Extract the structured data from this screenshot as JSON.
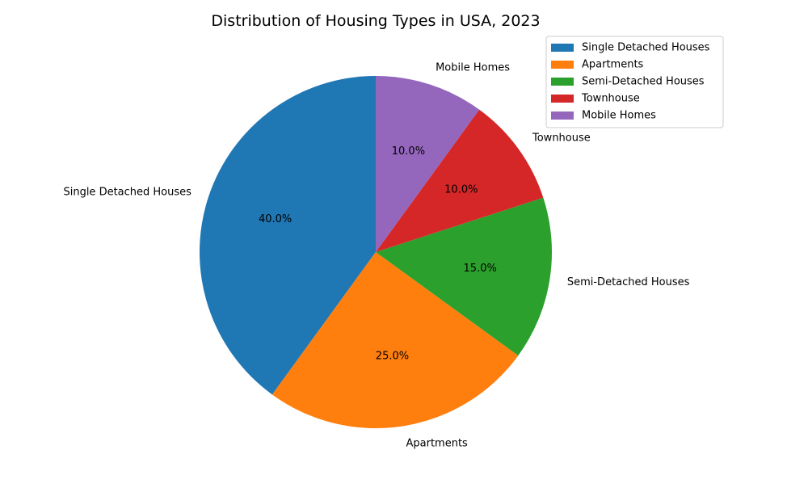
{
  "chart_data": {
    "type": "pie",
    "title": "Distribution of Housing Types in USA, 2023",
    "categories": [
      "Single Detached Houses",
      "Apartments",
      "Semi-Detached Houses",
      "Townhouse",
      "Mobile Homes"
    ],
    "values": [
      40.0,
      25.0,
      15.0,
      10.0,
      10.0
    ],
    "pct_labels": [
      "40.0%",
      "25.0%",
      "15.0%",
      "10.0%",
      "10.0%"
    ],
    "colors": [
      "#1f77b4",
      "#ff7f0e",
      "#2ca02c",
      "#d62728",
      "#9467bd"
    ],
    "start_angle_deg": 90,
    "direction": "counterclockwise",
    "legend": {
      "placement": "top-right",
      "entries": [
        "Single Detached Houses",
        "Apartments",
        "Semi-Detached Houses",
        "Townhouse",
        "Mobile Homes"
      ]
    }
  }
}
